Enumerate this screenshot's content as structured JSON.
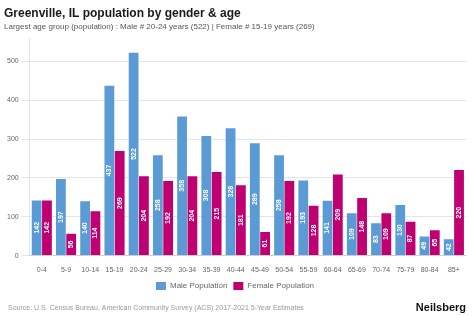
{
  "chart_data": {
    "type": "bar",
    "title": "Greenville, IL population by gender & age",
    "subtitle": "Largest age group (population) : Male # 20-24 years (522) | Female # 15-19 years (269)",
    "source": "Source: U.S. Census Bureau, American Community Survey (ACS) 2017-2021 5-Year Estimates",
    "annotations": [
      "Neilsberg"
    ],
    "categories": [
      "0-4",
      "5-9",
      "10-14",
      "15-19",
      "20-24",
      "25-29",
      "30-34",
      "35-39",
      "40-44",
      "45-49",
      "50-54",
      "55-59",
      "60-64",
      "65-69",
      "70-74",
      "75-79",
      "80-84",
      "85+"
    ],
    "series": [
      {
        "name": "Male Population",
        "color": "#5b9bd5",
        "values": [
          142,
          197,
          140,
          437,
          522,
          258,
          358,
          308,
          328,
          289,
          258,
          193,
          141,
          109,
          83,
          130,
          49,
          42
        ]
      },
      {
        "name": "Female Population",
        "color": "#c00070",
        "values": [
          142,
          56,
          114,
          269,
          204,
          192,
          204,
          215,
          181,
          61,
          192,
          128,
          209,
          148,
          109,
          87,
          65,
          220
        ]
      }
    ],
    "ylim": [
      0,
      560
    ],
    "yticks": [
      0,
      100,
      200,
      300,
      400,
      500
    ],
    "grid": true,
    "legend": "bottom",
    "data_labels": true
  }
}
